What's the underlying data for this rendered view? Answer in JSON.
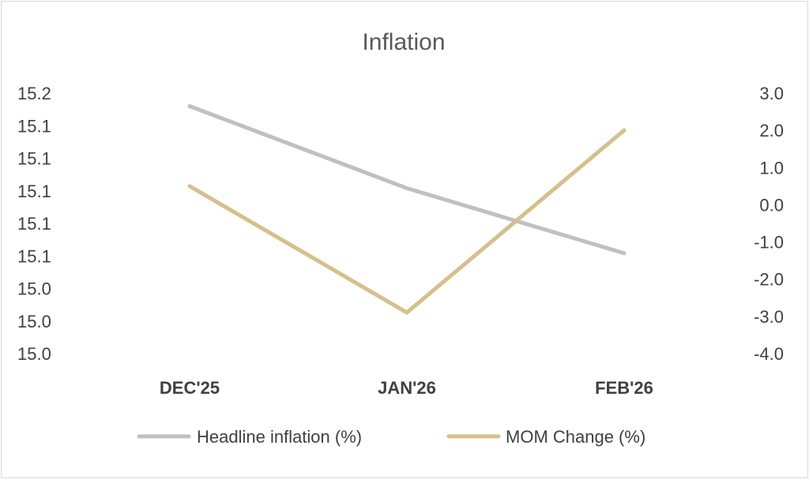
{
  "chart_data": {
    "type": "line",
    "title": "Inflation",
    "categories": [
      "DEC'25",
      "JAN'26",
      "FEB'26"
    ],
    "y_left": {
      "range": [
        14.98,
        15.18
      ],
      "ticks": [
        14.98,
        15.005,
        15.03,
        15.055,
        15.08,
        15.105,
        15.13,
        15.155,
        15.18
      ],
      "tick_labels": [
        "15.0",
        "15.0",
        "15.0",
        "15.1",
        "15.1",
        "15.1",
        "15.1",
        "15.1",
        "15.2"
      ]
    },
    "y_right": {
      "range": [
        -4.0,
        3.0
      ],
      "ticks": [
        -4.0,
        -3.0,
        -2.0,
        -1.0,
        0.0,
        1.0,
        2.0,
        3.0
      ],
      "tick_labels": [
        "-4.0",
        "-3.0",
        "-2.0",
        "-1.0",
        "0.0",
        "1.0",
        "2.0",
        "3.0"
      ]
    },
    "series": [
      {
        "name": "Headline inflation (%)",
        "axis": "left",
        "color": "#c0c0c0",
        "values": [
          15.17,
          15.107,
          15.057
        ]
      },
      {
        "name": "MOM Change (%)",
        "axis": "right",
        "color": "#d6bf8c",
        "values": [
          0.5,
          -2.9,
          2.0
        ]
      }
    ],
    "grid": false,
    "legend": "bottom"
  }
}
